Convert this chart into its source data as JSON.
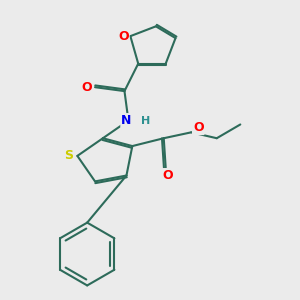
{
  "bg_color": "#ebebeb",
  "bond_color": "#2d6b5a",
  "bond_width": 1.5,
  "atom_colors": {
    "O": "#ff0000",
    "N": "#0000ee",
    "S": "#cccc00",
    "H": "#2d9090"
  },
  "font_size": 8,
  "figsize": [
    3.0,
    3.0
  ],
  "dpi": 100
}
